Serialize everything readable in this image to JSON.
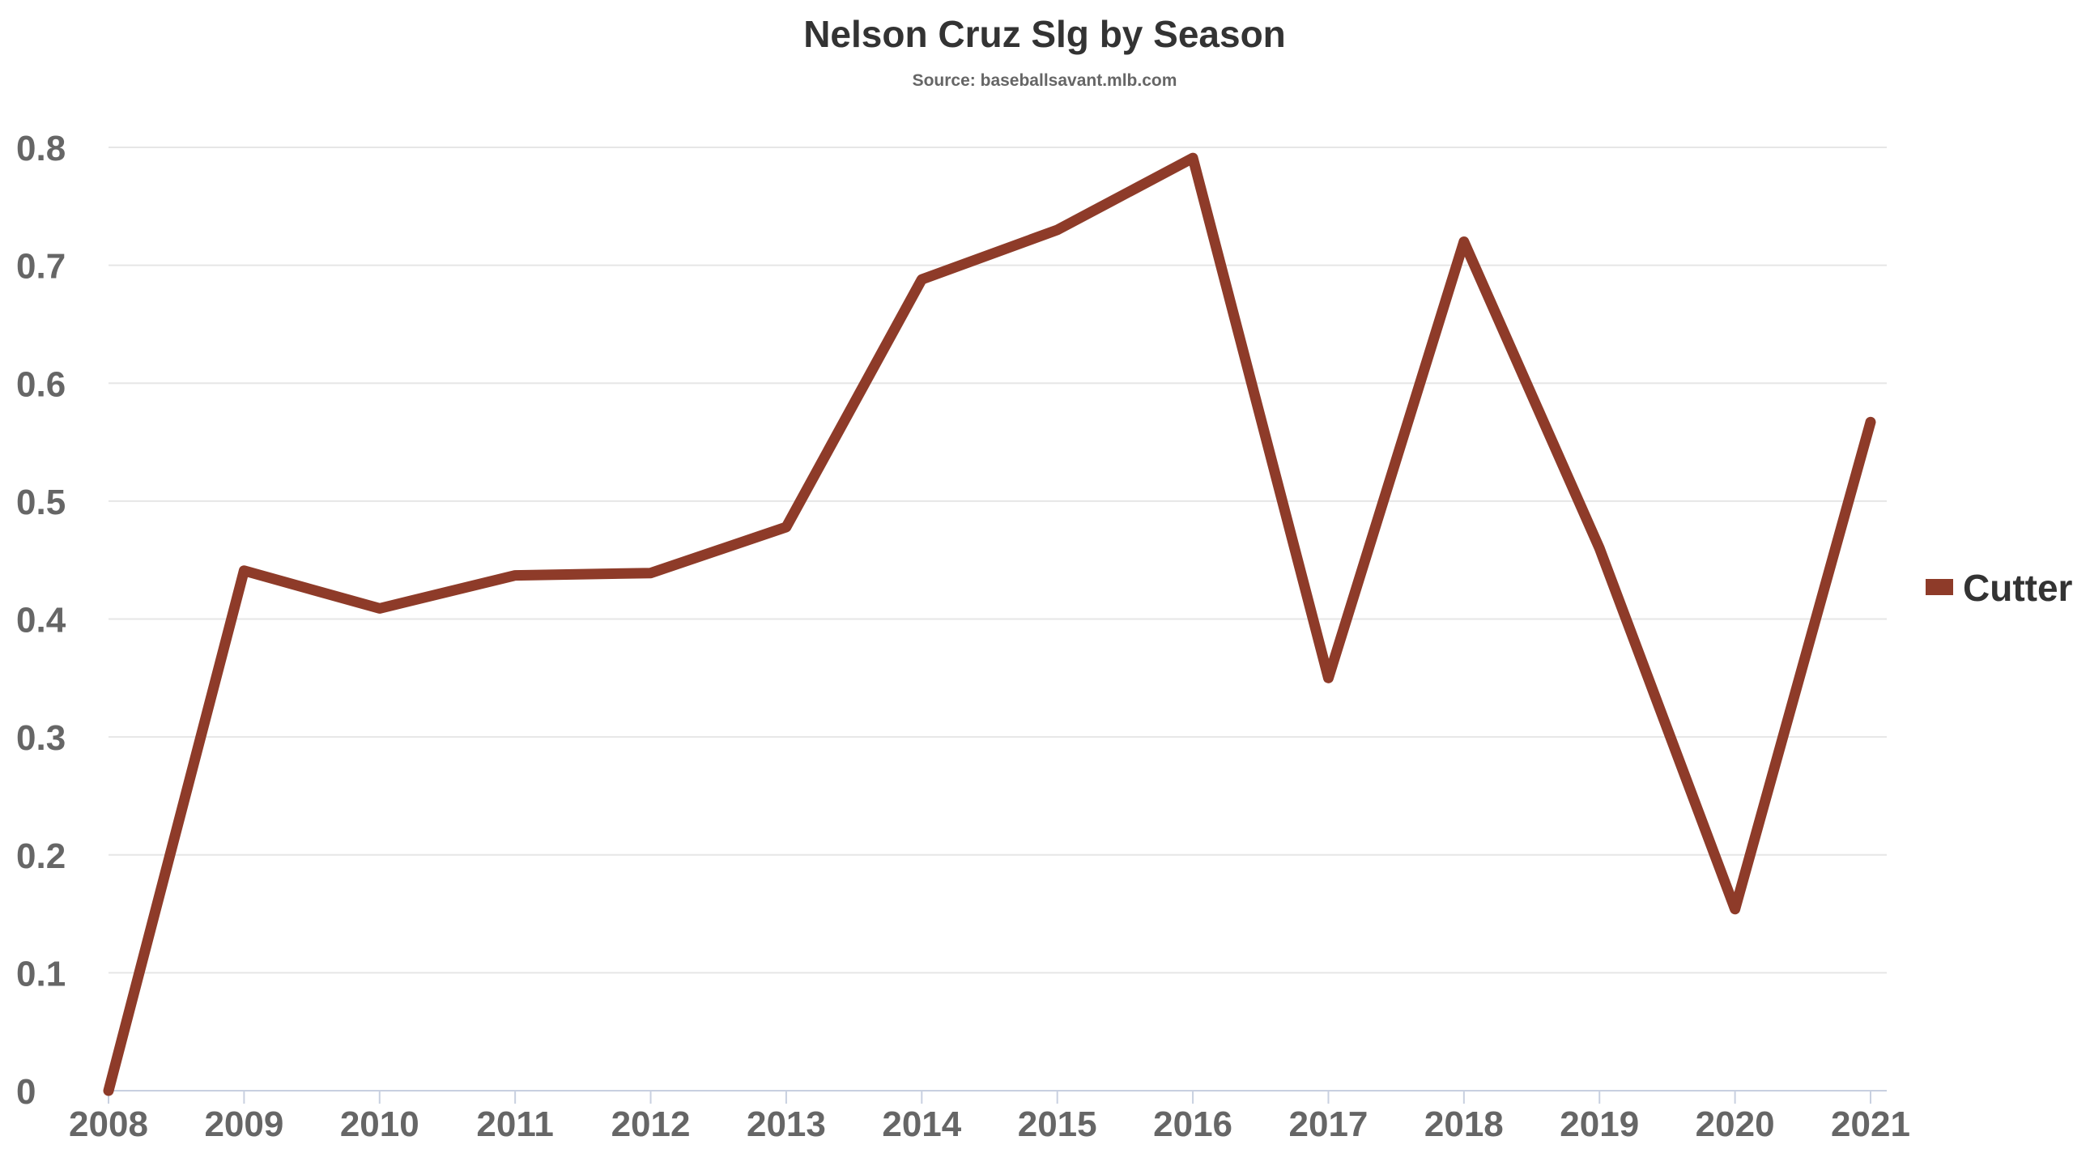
{
  "chart_data": {
    "type": "line",
    "title": "Nelson Cruz Slg by Season",
    "subtitle": "Source: baseballsavant.mlb.com",
    "xlabel": "",
    "ylabel": "",
    "categories": [
      "2008",
      "2009",
      "2010",
      "2011",
      "2012",
      "2013",
      "2014",
      "2015",
      "2016",
      "2017",
      "2018",
      "2019",
      "2020",
      "2021"
    ],
    "series": [
      {
        "name": "Cutter",
        "color": "#8e3b29",
        "values": [
          0,
          0.441,
          0.409,
          0.437,
          0.439,
          0.478,
          0.688,
          0.73,
          0.791,
          0.35,
          0.72,
          0.46,
          0.154,
          0.567
        ]
      }
    ],
    "ylim": [
      0,
      0.8
    ],
    "yticks": [
      "0",
      "0.1",
      "0.2",
      "0.3",
      "0.4",
      "0.5",
      "0.6",
      "0.7",
      "0.8"
    ],
    "grid": true,
    "legend_position": "right"
  }
}
